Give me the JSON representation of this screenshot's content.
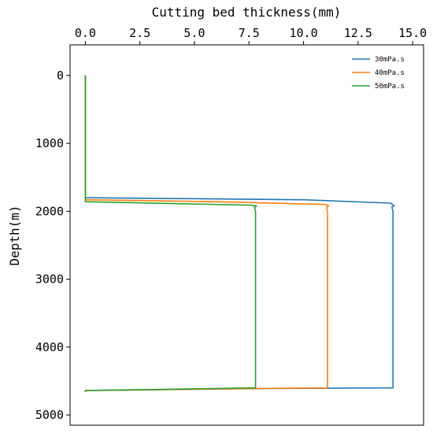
{
  "chart_data": {
    "type": "line",
    "title": "",
    "xlabel": "Cutting bed thickness(mm)",
    "ylabel": "Depth(m)",
    "xlim": [
      -0.7,
      15.5
    ],
    "ylim": [
      5150,
      -450
    ],
    "x_axis_position": "top",
    "y_inverted": true,
    "grid": false,
    "legend_position": "top-right",
    "xticks": [
      0.0,
      2.5,
      5.0,
      7.5,
      10.0,
      12.5,
      15.0
    ],
    "xtick_labels": [
      "0.0",
      "2.5",
      "5.0",
      "7.5",
      "10.0",
      "12.5",
      "15.0"
    ],
    "yticks": [
      0,
      1000,
      2000,
      3000,
      4000,
      5000
    ],
    "ytick_labels": [
      "0",
      "1000",
      "2000",
      "3000",
      "4000",
      "5000"
    ],
    "series": [
      {
        "name": "30mPa.s",
        "color": "#1f77b4",
        "points": [
          [
            0,
            0
          ],
          [
            0,
            1800
          ],
          [
            10,
            1830
          ],
          [
            14.0,
            1880
          ],
          [
            14.15,
            1920
          ],
          [
            14.05,
            1940
          ],
          [
            14.1,
            2000
          ],
          [
            14.1,
            4600
          ],
          [
            8,
            4610
          ],
          [
            0,
            4640
          ],
          [
            0,
            4660
          ]
        ]
      },
      {
        "name": "40mPa.s",
        "color": "#ff7f0e",
        "points": [
          [
            0,
            0
          ],
          [
            0,
            1830
          ],
          [
            6,
            1860
          ],
          [
            11.0,
            1900
          ],
          [
            11.15,
            1920
          ],
          [
            11.05,
            1940
          ],
          [
            11.1,
            2000
          ],
          [
            11.1,
            4600
          ],
          [
            6,
            4615
          ],
          [
            0,
            4640
          ],
          [
            0,
            4660
          ]
        ]
      },
      {
        "name": "50mPa.s",
        "color": "#2ca02c",
        "points": [
          [
            0,
            0
          ],
          [
            0,
            1860
          ],
          [
            7.6,
            1910
          ],
          [
            7.85,
            1925
          ],
          [
            7.75,
            1940
          ],
          [
            7.8,
            2000
          ],
          [
            7.8,
            4600
          ],
          [
            4,
            4620
          ],
          [
            0,
            4640
          ],
          [
            0,
            4660
          ]
        ]
      }
    ]
  }
}
